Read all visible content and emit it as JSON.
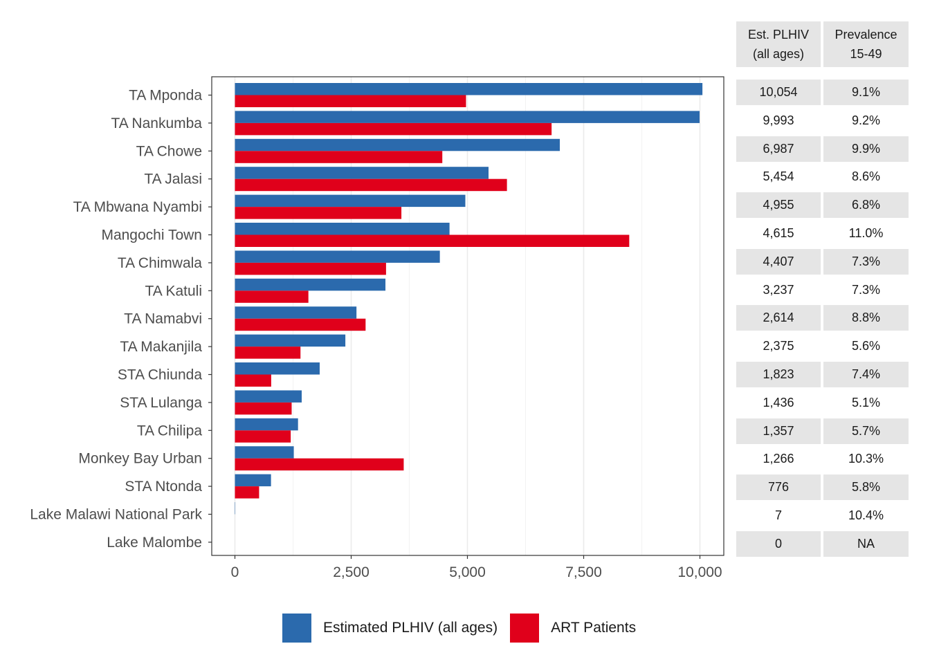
{
  "chart_data": {
    "type": "bar",
    "orientation": "horizontal",
    "categories": [
      "TA Mponda",
      "TA Nankumba",
      "TA Chowe",
      "TA Jalasi",
      "TA Mbwana Nyambi",
      "Mangochi Town",
      "TA Chimwala",
      "TA Katuli",
      "TA Namabvi",
      "TA Makanjila",
      "STA Chiunda",
      "STA Lulanga",
      "TA Chilipa",
      "Monkey Bay Urban",
      "STA Ntonda",
      "Lake Malawi National Park",
      "Lake Malombe"
    ],
    "series": [
      {
        "name": "Estimated PLHIV (all ages)",
        "color": "#2b6aad",
        "values": [
          10054,
          9993,
          6987,
          5454,
          4955,
          4615,
          4407,
          3237,
          2614,
          2375,
          1823,
          1436,
          1357,
          1266,
          776,
          7,
          0
        ]
      },
      {
        "name": "ART Patients",
        "color": "#e0001b",
        "values": [
          4970,
          6810,
          4460,
          5850,
          3580,
          8480,
          3250,
          1580,
          2810,
          1410,
          780,
          1220,
          1200,
          3630,
          520,
          0,
          0
        ]
      }
    ],
    "xlim": [
      -500,
      10500
    ],
    "xticks": [
      0,
      2500,
      5000,
      7500,
      10000
    ],
    "xtick_labels": [
      "0",
      "2,500",
      "5,000",
      "7,500",
      "10,000"
    ],
    "grid": true,
    "legend_position": "bottom"
  },
  "table": {
    "headers": [
      "Est. PLHIV\n(all ages)",
      "Prevalence\n15-49"
    ],
    "rows": [
      [
        "10,054",
        "9.1%"
      ],
      [
        "9,993",
        "9.2%"
      ],
      [
        "6,987",
        "9.9%"
      ],
      [
        "5,454",
        "8.6%"
      ],
      [
        "4,955",
        "6.8%"
      ],
      [
        "4,615",
        "11.0%"
      ],
      [
        "4,407",
        "7.3%"
      ],
      [
        "3,237",
        "7.3%"
      ],
      [
        "2,614",
        "8.8%"
      ],
      [
        "2,375",
        "5.6%"
      ],
      [
        "1,823",
        "7.4%"
      ],
      [
        "1,436",
        "5.1%"
      ],
      [
        "1,357",
        "5.7%"
      ],
      [
        "1,266",
        "10.3%"
      ],
      [
        "776",
        "5.8%"
      ],
      [
        "7",
        "10.4%"
      ],
      [
        "0",
        "NA"
      ]
    ]
  },
  "legend": {
    "items": [
      {
        "label": "Estimated PLHIV (all ages)",
        "color": "#2b6aad"
      },
      {
        "label": "ART Patients",
        "color": "#e0001b"
      }
    ]
  }
}
